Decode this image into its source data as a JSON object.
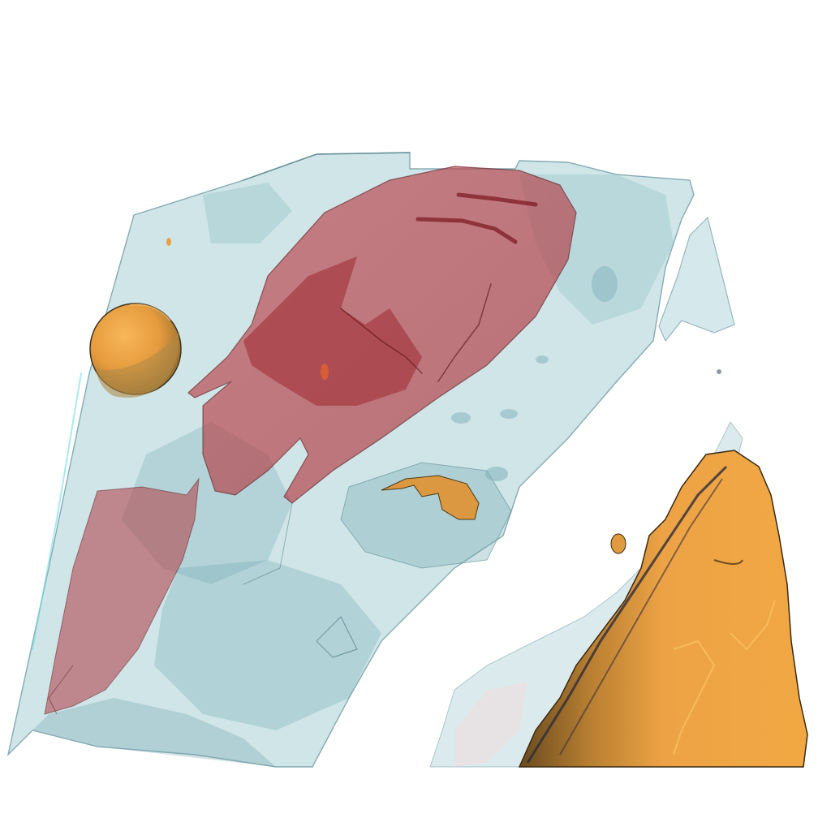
{
  "scene": {
    "background_color": "#ffffff",
    "structures": [
      {
        "name": "translucent-tissue-volume",
        "color": "#9fcbd0",
        "opacity": 0.5
      },
      {
        "name": "red-organ-surface",
        "color": "#b8343c",
        "opacity": 0.65
      },
      {
        "name": "orange-sphere",
        "color": "#e8a046",
        "opacity": 1
      },
      {
        "name": "orange-bone-surface",
        "color": "#eea342",
        "opacity": 1
      },
      {
        "name": "small-orange-inclusion",
        "color": "#dc9840",
        "opacity": 1
      }
    ]
  }
}
